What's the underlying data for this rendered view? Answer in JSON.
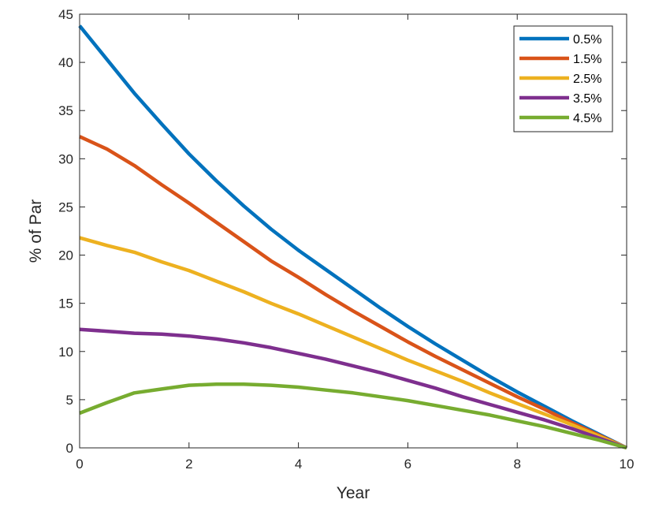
{
  "chart_data": {
    "type": "line",
    "title": "",
    "xlabel": "Year",
    "ylabel": "% of Par",
    "xlim": [
      0,
      10
    ],
    "ylim": [
      0,
      45
    ],
    "xticks": [
      "0",
      "2",
      "4",
      "6",
      "8",
      "10"
    ],
    "yticks": [
      "0",
      "5",
      "10",
      "15",
      "20",
      "25",
      "30",
      "35",
      "40",
      "45"
    ],
    "grid": false,
    "legend_position": "top-right",
    "x": [
      0,
      0.5,
      1,
      1.5,
      2,
      2.5,
      3,
      3.5,
      4,
      4.5,
      5,
      5.5,
      6,
      6.5,
      7,
      7.5,
      8,
      8.5,
      9,
      9.5,
      10
    ],
    "series": [
      {
        "name": "0.5%",
        "color": "#0072BD",
        "values": [
          43.8,
          40.3,
          36.8,
          33.6,
          30.5,
          27.7,
          25.1,
          22.7,
          20.5,
          18.5,
          16.5,
          14.5,
          12.6,
          10.8,
          9.1,
          7.4,
          5.8,
          4.3,
          2.8,
          1.4,
          0
        ]
      },
      {
        "name": "1.5%",
        "color": "#D95319",
        "values": [
          32.3,
          31.0,
          29.3,
          27.3,
          25.4,
          23.4,
          21.4,
          19.4,
          17.7,
          15.9,
          14.2,
          12.6,
          11.0,
          9.5,
          8.1,
          6.7,
          5.3,
          4.0,
          2.6,
          1.3,
          0
        ]
      },
      {
        "name": "2.5%",
        "color": "#EDB120",
        "values": [
          21.8,
          21.0,
          20.3,
          19.3,
          18.4,
          17.3,
          16.2,
          15.0,
          13.9,
          12.7,
          11.5,
          10.3,
          9.1,
          8.0,
          6.9,
          5.7,
          4.6,
          3.5,
          2.4,
          1.2,
          0
        ]
      },
      {
        "name": "3.5%",
        "color": "#7E2F8E",
        "values": [
          12.3,
          12.1,
          11.9,
          11.8,
          11.6,
          11.3,
          10.9,
          10.4,
          9.8,
          9.2,
          8.5,
          7.8,
          7.0,
          6.2,
          5.3,
          4.5,
          3.7,
          2.9,
          2.0,
          1.0,
          0
        ]
      },
      {
        "name": "4.5%",
        "color": "#77AC30",
        "values": [
          3.6,
          4.7,
          5.7,
          6.1,
          6.5,
          6.6,
          6.6,
          6.5,
          6.3,
          6.0,
          5.7,
          5.3,
          4.9,
          4.4,
          3.9,
          3.4,
          2.8,
          2.2,
          1.5,
          0.8,
          0
        ]
      }
    ]
  }
}
